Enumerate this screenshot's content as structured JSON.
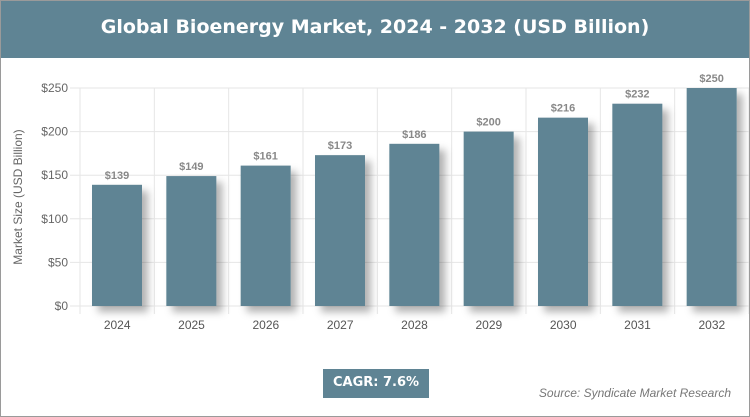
{
  "chart_data": {
    "type": "bar",
    "title": "Global Bioenergy Market, 2024 - 2032 (USD Billion)",
    "xlabel": "",
    "ylabel": "Market Size (USD Billion)",
    "categories": [
      "2024",
      "2025",
      "2026",
      "2027",
      "2028",
      "2029",
      "2030",
      "2031",
      "2032"
    ],
    "values": [
      139,
      149,
      161,
      173,
      186,
      200,
      216,
      232,
      250
    ],
    "data_labels": [
      "$139",
      "$149",
      "$161",
      "$173",
      "$186",
      "$200",
      "$216",
      "$232",
      "$250"
    ],
    "ylim": [
      0,
      250
    ],
    "yticks": [
      0,
      50,
      100,
      150,
      200,
      250
    ],
    "ytick_labels": [
      "$0",
      "$50",
      "$100",
      "$150",
      "$200",
      "$250"
    ],
    "grid": true,
    "bar_color": "#5f8494"
  },
  "cagr": "CAGR: 7.6%",
  "source": "Source: Syndicate Market Research"
}
